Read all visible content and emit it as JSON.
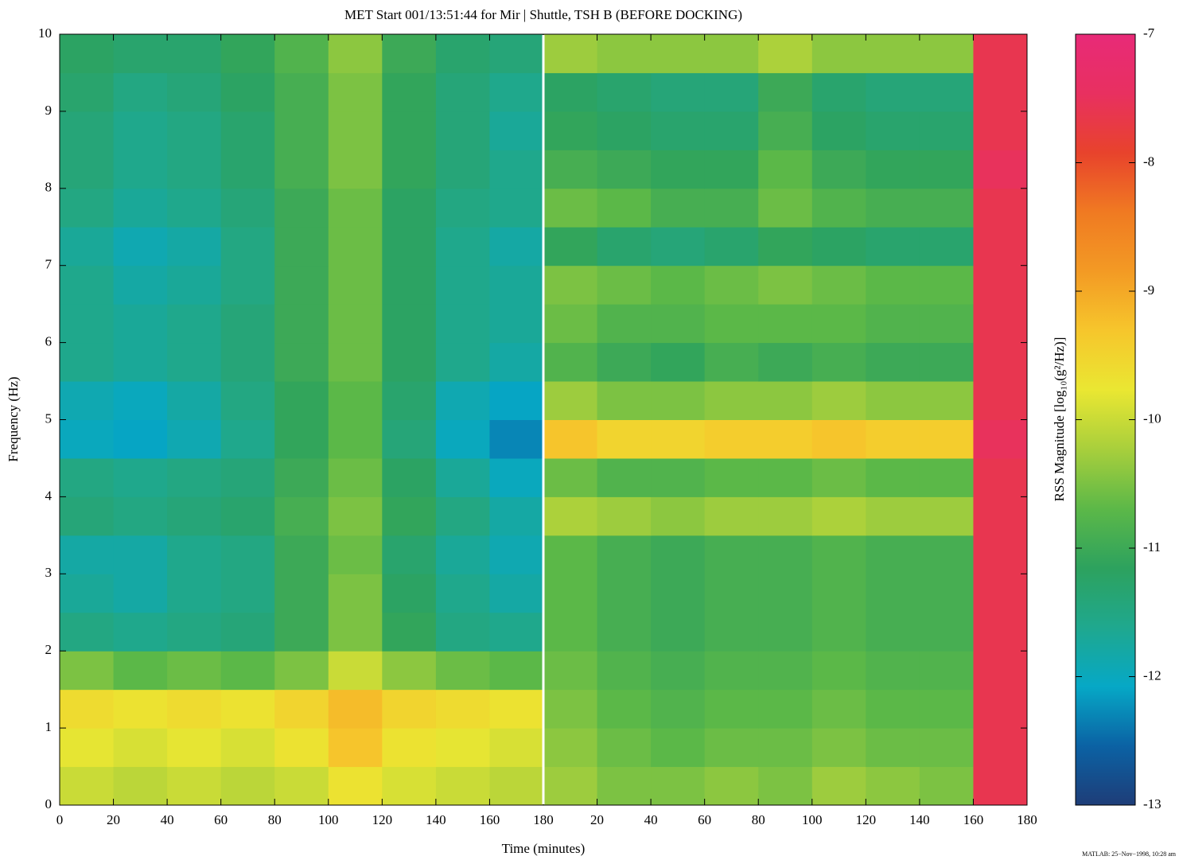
{
  "chart_data": {
    "type": "heatmap",
    "title": "MET Start 001/13:51:44 for Mir | Shuttle, TSH B (BEFORE DOCKING)",
    "xlabel": "Time (minutes)",
    "ylabel": "Frequency (Hz)",
    "colorbar_label": "RSS Magnitude [log₁₀(g²/Hz)]",
    "footer": "MATLAB: 25−Nov−1998, 10:28 am",
    "xlim": [
      0,
      360
    ],
    "ylim": [
      0,
      10
    ],
    "xticks": [
      0,
      20,
      40,
      60,
      80,
      100,
      120,
      140,
      160,
      180,
      {
        "value": 200,
        "label": "20"
      },
      {
        "value": 220,
        "label": "40"
      },
      {
        "value": 240,
        "label": "60"
      },
      {
        "value": 260,
        "label": "80"
      },
      {
        "value": 280,
        "label": "100"
      },
      {
        "value": 300,
        "label": "120"
      },
      {
        "value": 320,
        "label": "140"
      },
      {
        "value": 340,
        "label": "160"
      },
      {
        "value": 360,
        "label": "180"
      }
    ],
    "yticks": [
      0,
      1,
      2,
      3,
      4,
      5,
      6,
      7,
      8,
      9,
      10
    ],
    "clim": [
      -13,
      -7
    ],
    "cticks": [
      -13,
      -12,
      -11,
      -10,
      -9,
      -8,
      -7
    ],
    "colormap": [
      "#1e3d78",
      "#0b62a4",
      "#06a8c6",
      "#1fa88e",
      "#2da25e",
      "#5cb848",
      "#a8cf3c",
      "#eae732",
      "#f6c62c",
      "#f39a24",
      "#f07a22",
      "#e8432c",
      "#e83060",
      "#e82a78"
    ],
    "x_edges": [
      0,
      20,
      40,
      60,
      80,
      100,
      120,
      140,
      160,
      180,
      200,
      220,
      240,
      260,
      280,
      300,
      320,
      340,
      360
    ],
    "y_edges": [
      0,
      0.5,
      1,
      1.5,
      2,
      2.5,
      3,
      3.5,
      4,
      4.5,
      5,
      5.5,
      6,
      6.5,
      7,
      7.5,
      8,
      8.5,
      9,
      9.5,
      10
    ],
    "z": [
      [
        -10.0,
        -10.1,
        -10.0,
        -10.1,
        -10.0,
        -9.7,
        -9.9,
        -10.0,
        -10.1,
        -10.3,
        -10.5,
        -10.5,
        -10.4,
        -10.5,
        -10.3,
        -10.4,
        -10.5,
        -7.6
      ],
      [
        -9.8,
        -9.9,
        -9.8,
        -9.9,
        -9.7,
        -9.3,
        -9.7,
        -9.8,
        -9.9,
        -10.4,
        -10.6,
        -10.7,
        -10.6,
        -10.6,
        -10.5,
        -10.6,
        -10.6,
        -7.6
      ],
      [
        -9.6,
        -9.7,
        -9.6,
        -9.7,
        -9.5,
        -9.2,
        -9.5,
        -9.6,
        -9.7,
        -10.5,
        -10.7,
        -10.8,
        -10.7,
        -10.7,
        -10.6,
        -10.7,
        -10.7,
        -7.6
      ],
      [
        -10.5,
        -10.7,
        -10.6,
        -10.7,
        -10.5,
        -10.0,
        -10.4,
        -10.6,
        -10.7,
        -10.6,
        -10.8,
        -10.9,
        -10.8,
        -10.8,
        -10.7,
        -10.8,
        -10.8,
        -7.6
      ],
      [
        -11.5,
        -11.6,
        -11.5,
        -11.4,
        -11.0,
        -10.5,
        -11.1,
        -11.5,
        -11.6,
        -10.7,
        -10.9,
        -11.0,
        -10.9,
        -10.9,
        -10.8,
        -10.9,
        -10.9,
        -7.6
      ],
      [
        -11.7,
        -11.8,
        -11.6,
        -11.5,
        -11.0,
        -10.5,
        -11.2,
        -11.6,
        -11.8,
        -10.7,
        -10.9,
        -11.0,
        -10.9,
        -10.9,
        -10.8,
        -10.9,
        -10.9,
        -7.6
      ],
      [
        -11.8,
        -11.8,
        -11.6,
        -11.5,
        -11.0,
        -10.6,
        -11.3,
        -11.7,
        -11.9,
        -10.7,
        -10.9,
        -11.0,
        -10.9,
        -10.9,
        -10.8,
        -10.9,
        -10.9,
        -7.6
      ],
      [
        -11.4,
        -11.5,
        -11.4,
        -11.3,
        -10.9,
        -10.5,
        -11.1,
        -11.5,
        -11.8,
        -10.2,
        -10.3,
        -10.4,
        -10.3,
        -10.3,
        -10.2,
        -10.3,
        -10.3,
        -7.6
      ],
      [
        -11.5,
        -11.6,
        -11.5,
        -11.4,
        -11.0,
        -10.6,
        -11.2,
        -11.7,
        -12.0,
        -10.6,
        -10.8,
        -10.8,
        -10.7,
        -10.7,
        -10.6,
        -10.7,
        -10.7,
        -7.6
      ],
      [
        -12.0,
        -12.1,
        -11.9,
        -11.6,
        -11.1,
        -10.7,
        -11.4,
        -12.0,
        -12.3,
        -9.3,
        -9.5,
        -9.5,
        -9.4,
        -9.4,
        -9.3,
        -9.4,
        -9.4,
        -7.5
      ],
      [
        -11.9,
        -12.0,
        -11.8,
        -11.5,
        -11.1,
        -10.7,
        -11.3,
        -11.9,
        -12.1,
        -10.3,
        -10.5,
        -10.5,
        -10.4,
        -10.4,
        -10.3,
        -10.4,
        -10.4,
        -7.6
      ],
      [
        -11.6,
        -11.7,
        -11.6,
        -11.4,
        -11.0,
        -10.6,
        -11.2,
        -11.6,
        -11.8,
        -10.8,
        -11.0,
        -11.1,
        -10.9,
        -11.0,
        -10.9,
        -11.0,
        -11.0,
        -7.6
      ],
      [
        -11.6,
        -11.7,
        -11.6,
        -11.4,
        -11.0,
        -10.6,
        -11.2,
        -11.6,
        -11.7,
        -10.6,
        -10.8,
        -10.8,
        -10.7,
        -10.7,
        -10.7,
        -10.8,
        -10.8,
        -7.6
      ],
      [
        -11.6,
        -11.8,
        -11.7,
        -11.5,
        -11.0,
        -10.6,
        -11.2,
        -11.6,
        -11.7,
        -10.5,
        -10.6,
        -10.7,
        -10.6,
        -10.5,
        -10.6,
        -10.7,
        -10.7,
        -7.6
      ],
      [
        -11.7,
        -11.9,
        -11.8,
        -11.5,
        -11.0,
        -10.6,
        -11.2,
        -11.6,
        -11.8,
        -11.1,
        -11.3,
        -11.4,
        -11.3,
        -11.1,
        -11.2,
        -11.3,
        -11.3,
        -7.6
      ],
      [
        -11.5,
        -11.7,
        -11.6,
        -11.4,
        -11.0,
        -10.6,
        -11.2,
        -11.5,
        -11.6,
        -10.6,
        -10.7,
        -10.9,
        -10.9,
        -10.6,
        -10.8,
        -10.9,
        -10.9,
        -7.6
      ],
      [
        -11.4,
        -11.6,
        -11.5,
        -11.3,
        -10.9,
        -10.5,
        -11.1,
        -11.4,
        -11.6,
        -10.9,
        -11.0,
        -11.1,
        -11.1,
        -10.7,
        -11.0,
        -11.1,
        -11.1,
        -7.5
      ],
      [
        -11.4,
        -11.6,
        -11.5,
        -11.3,
        -10.9,
        -10.5,
        -11.1,
        -11.4,
        -11.7,
        -11.1,
        -11.2,
        -11.3,
        -11.3,
        -10.9,
        -11.2,
        -11.3,
        -11.3,
        -7.6
      ],
      [
        -11.3,
        -11.5,
        -11.4,
        -11.2,
        -10.9,
        -10.5,
        -11.1,
        -11.4,
        -11.6,
        -11.2,
        -11.3,
        -11.4,
        -11.4,
        -11.0,
        -11.3,
        -11.4,
        -11.4,
        -7.6
      ],
      [
        -11.2,
        -11.3,
        -11.3,
        -11.1,
        -10.8,
        -10.4,
        -11.0,
        -11.3,
        -11.4,
        -10.3,
        -10.4,
        -10.4,
        -10.4,
        -10.2,
        -10.4,
        -10.4,
        -10.4,
        -7.6
      ]
    ]
  }
}
